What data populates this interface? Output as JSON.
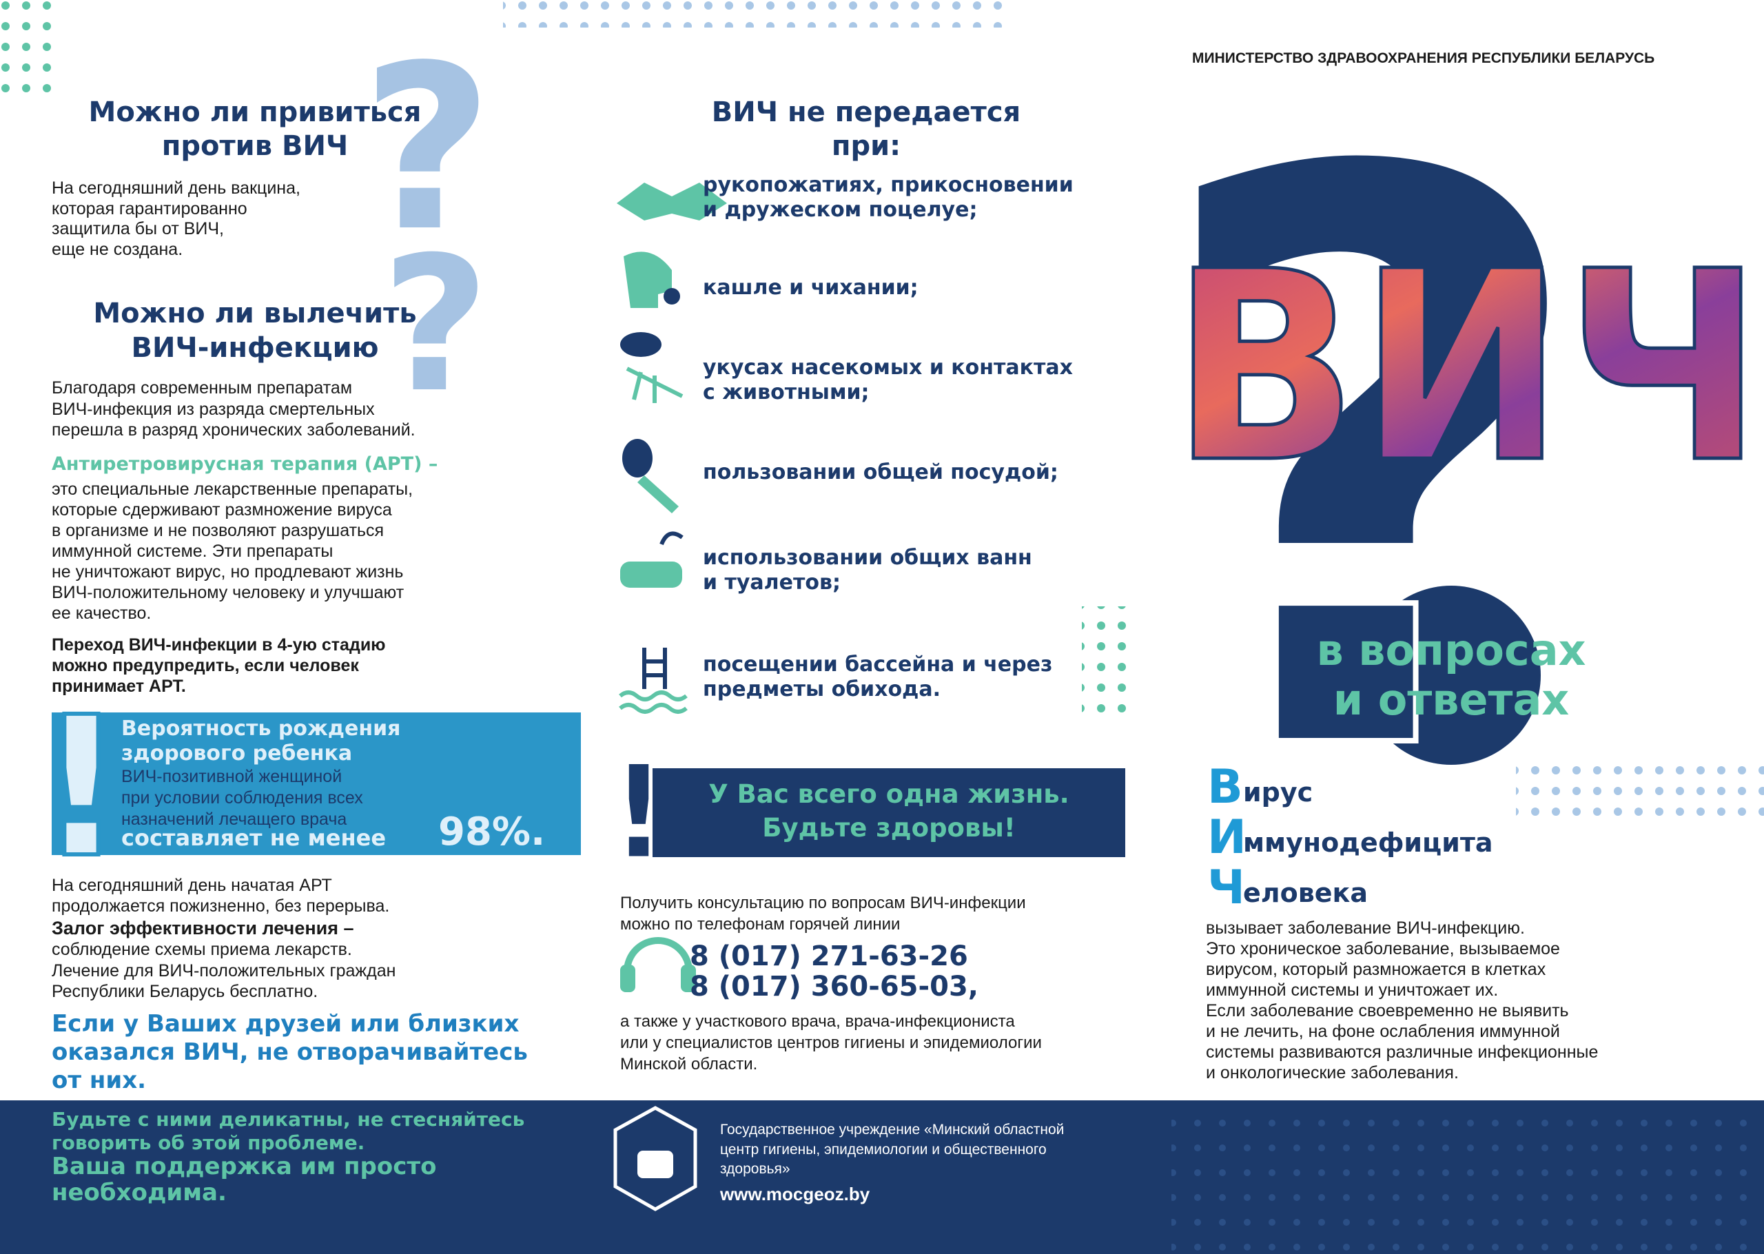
{
  "header": {
    "ministry": "МИНИСТЕРСТВО ЗДРАВООХРАНЕНИЯ РЕСПУБЛИКИ БЕЛАРУСЬ"
  },
  "question_mark": "?",
  "exclamation_mark": "!",
  "left": {
    "q1": {
      "title": [
        "Можно ли привиться",
        "против ВИЧ"
      ],
      "text": [
        "На сегодняшний день вакцина,",
        "которая гарантированно",
        "защитила бы от ВИЧ,",
        "еще не создана."
      ]
    },
    "q2": {
      "title": [
        "Можно ли вылечить",
        "ВИЧ-инфекцию"
      ],
      "text": [
        "Благодаря современным препаратам",
        "ВИЧ-инфекция из разряда смертельных",
        "перешла в разряд хронических заболеваний."
      ]
    },
    "art": {
      "term": "Антиретровирусная терапия (АРТ) –",
      "text": [
        "это специальные лекарственные препараты,",
        "которые сдерживают размножение вируса",
        "в организме и не позволяют разрушаться",
        "иммунной системе. Эти препараты",
        "не уничтожают вирус, но продлевают жизнь",
        "ВИЧ-положительному человеку и улучшают",
        "ее качество."
      ]
    },
    "stage": [
      "Переход ВИЧ-инфекции в 4-ую стадию",
      "можно предупредить, если человек",
      "принимает АРТ."
    ],
    "alert": {
      "heading": [
        "Вероятность рождения",
        "здорового ребенка"
      ],
      "text": [
        "ВИЧ-позитивной женщиной",
        "при условии соблюдения всех",
        "назначений лечащего врача"
      ],
      "last_line": "составляет не менее",
      "percent": "98%."
    },
    "therapy": {
      "lines": [
        "На сегодняшний день начатая АРТ",
        "продолжается пожизненно, без перерыва."
      ],
      "bold": "Залог эффективности лечения –",
      "more": [
        "соблюдение схемы приема лекарств.",
        "Лечение для ВИЧ-положительных граждан",
        "Республики Беларусь бесплатно."
      ]
    },
    "friends": [
      "Если у Ваших друзей или близких",
      "оказался ВИЧ, не отворачивайтесь",
      "от них."
    ]
  },
  "middle": {
    "title": [
      "ВИЧ не передается",
      "при:"
    ],
    "items": [
      [
        "рукопожатиях, прикосновении",
        "и дружеском поцелуе;"
      ],
      [
        "кашле и чихании;"
      ],
      [
        "укусах насекомых и контактах",
        "с животными;"
      ],
      [
        "пользовании общей посудой;"
      ],
      [
        "использовании общих ванн",
        "и туалетов;"
      ],
      [
        "посещении бассейна и через",
        "предметы обихода."
      ]
    ],
    "slogan": [
      "У Вас всего одна жизнь.",
      "Будьте здоровы!"
    ],
    "consult": [
      "Получить консультацию по вопросам ВИЧ-инфекции",
      "можно по телефонам горячей  линии"
    ],
    "phones": [
      "8 (017) 271-63-26",
      "8 (017) 360-65-03,"
    ],
    "also": [
      "а также у участкового врача, врача-инфекциониста",
      "или у специалистов центров гигиены и эпидемиологии",
      "Минской области."
    ]
  },
  "right": {
    "title": "ВИЧ",
    "subtitle": [
      "в вопросах",
      "и ответах"
    ],
    "acronym": [
      {
        "initial": "В",
        "rest": "ирус"
      },
      {
        "initial": "И",
        "rest": "ммунодефицита"
      },
      {
        "initial": "Ч",
        "rest": "еловека"
      }
    ],
    "description": [
      "вызывает заболевание ВИЧ-инфекцию.",
      "Это хроническое заболевание, вызываемое",
      "вирусом, который размножается в клетках",
      "иммунной системы и уничтожает их.",
      "Если заболевание своевременно не выявить",
      "и не лечить, на фоне ослабления иммунной",
      "системы развиваются различные инфекционные",
      "и онкологические заболевания."
    ]
  },
  "footer": {
    "support": [
      "Будьте с ними деликатны, не стесняйтесь",
      "говорить об этой проблеме."
    ],
    "support_big": [
      "Ваша поддержка им просто",
      "необходима."
    ],
    "org": [
      "Государственное учреждение «Минский областной",
      "центр гигиены, эпидемиологии и общественного",
      "здоровья»"
    ],
    "website": "www.mocgeoz.by"
  }
}
